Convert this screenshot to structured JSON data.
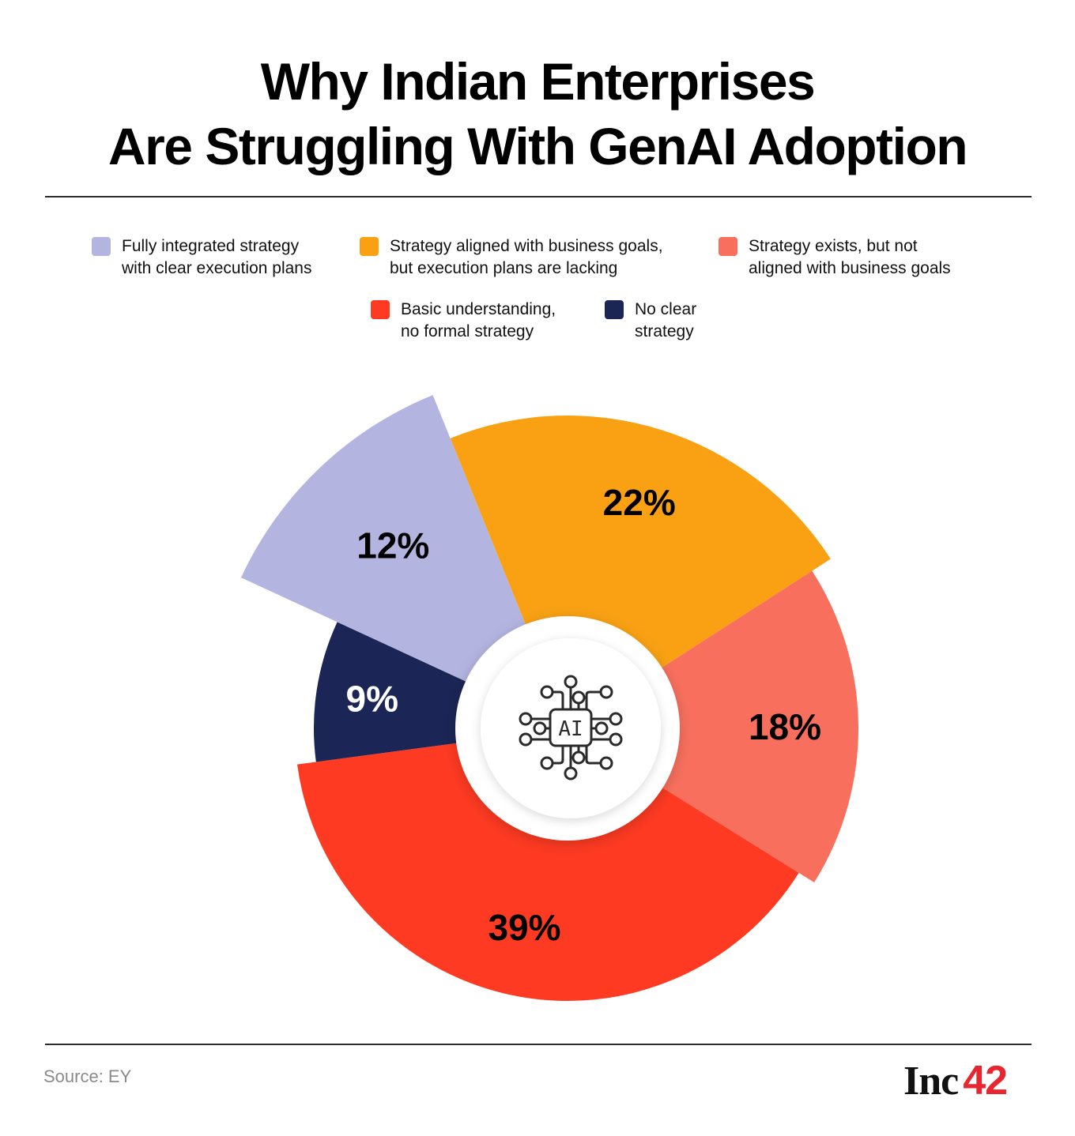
{
  "header": {
    "title_line1": "Why Indian Enterprises",
    "title_line2": "Are Struggling With GenAI Adoption"
  },
  "legend": [
    {
      "label": "Fully integrated strategy\nwith clear execution plans",
      "color": "#b3b4e0"
    },
    {
      "label": "Strategy aligned with business goals,\nbut execution plans are lacking",
      "color": "#f9a113"
    },
    {
      "label": "Strategy exists, but not\naligned with business goals",
      "color": "#f8705d"
    },
    {
      "label": "Basic understanding,\nno formal strategy",
      "color": "#fe3a22"
    },
    {
      "label": "No clear\nstrategy",
      "color": "#1b2656"
    }
  ],
  "center_icon": {
    "name": "ai-chip-icon",
    "text": "AI"
  },
  "chart_data": {
    "type": "pie",
    "variant": "variable-radius donut",
    "title": "Why Indian Enterprises Are Struggling With GenAI Adoption",
    "categories": [
      "Strategy aligned with business goals, but execution plans are lacking",
      "Strategy exists, but not aligned with business goals",
      "Basic understanding, no formal strategy",
      "No clear strategy",
      "Fully integrated strategy with clear execution plans"
    ],
    "values": [
      22,
      18,
      39,
      9,
      12
    ],
    "labels": [
      "22%",
      "18%",
      "39%",
      "9%",
      "12%"
    ],
    "colors": [
      "#f9a113",
      "#f8705d",
      "#fe3a22",
      "#1b2656",
      "#b3b4e0"
    ],
    "label_colors": [
      "#000000",
      "#000000",
      "#000000",
      "#ffffff",
      "#000000"
    ],
    "legend_position": "top",
    "unit": "%"
  },
  "footer": {
    "source": "Source: EY",
    "logo_text": "Inc",
    "logo_number": "42"
  }
}
